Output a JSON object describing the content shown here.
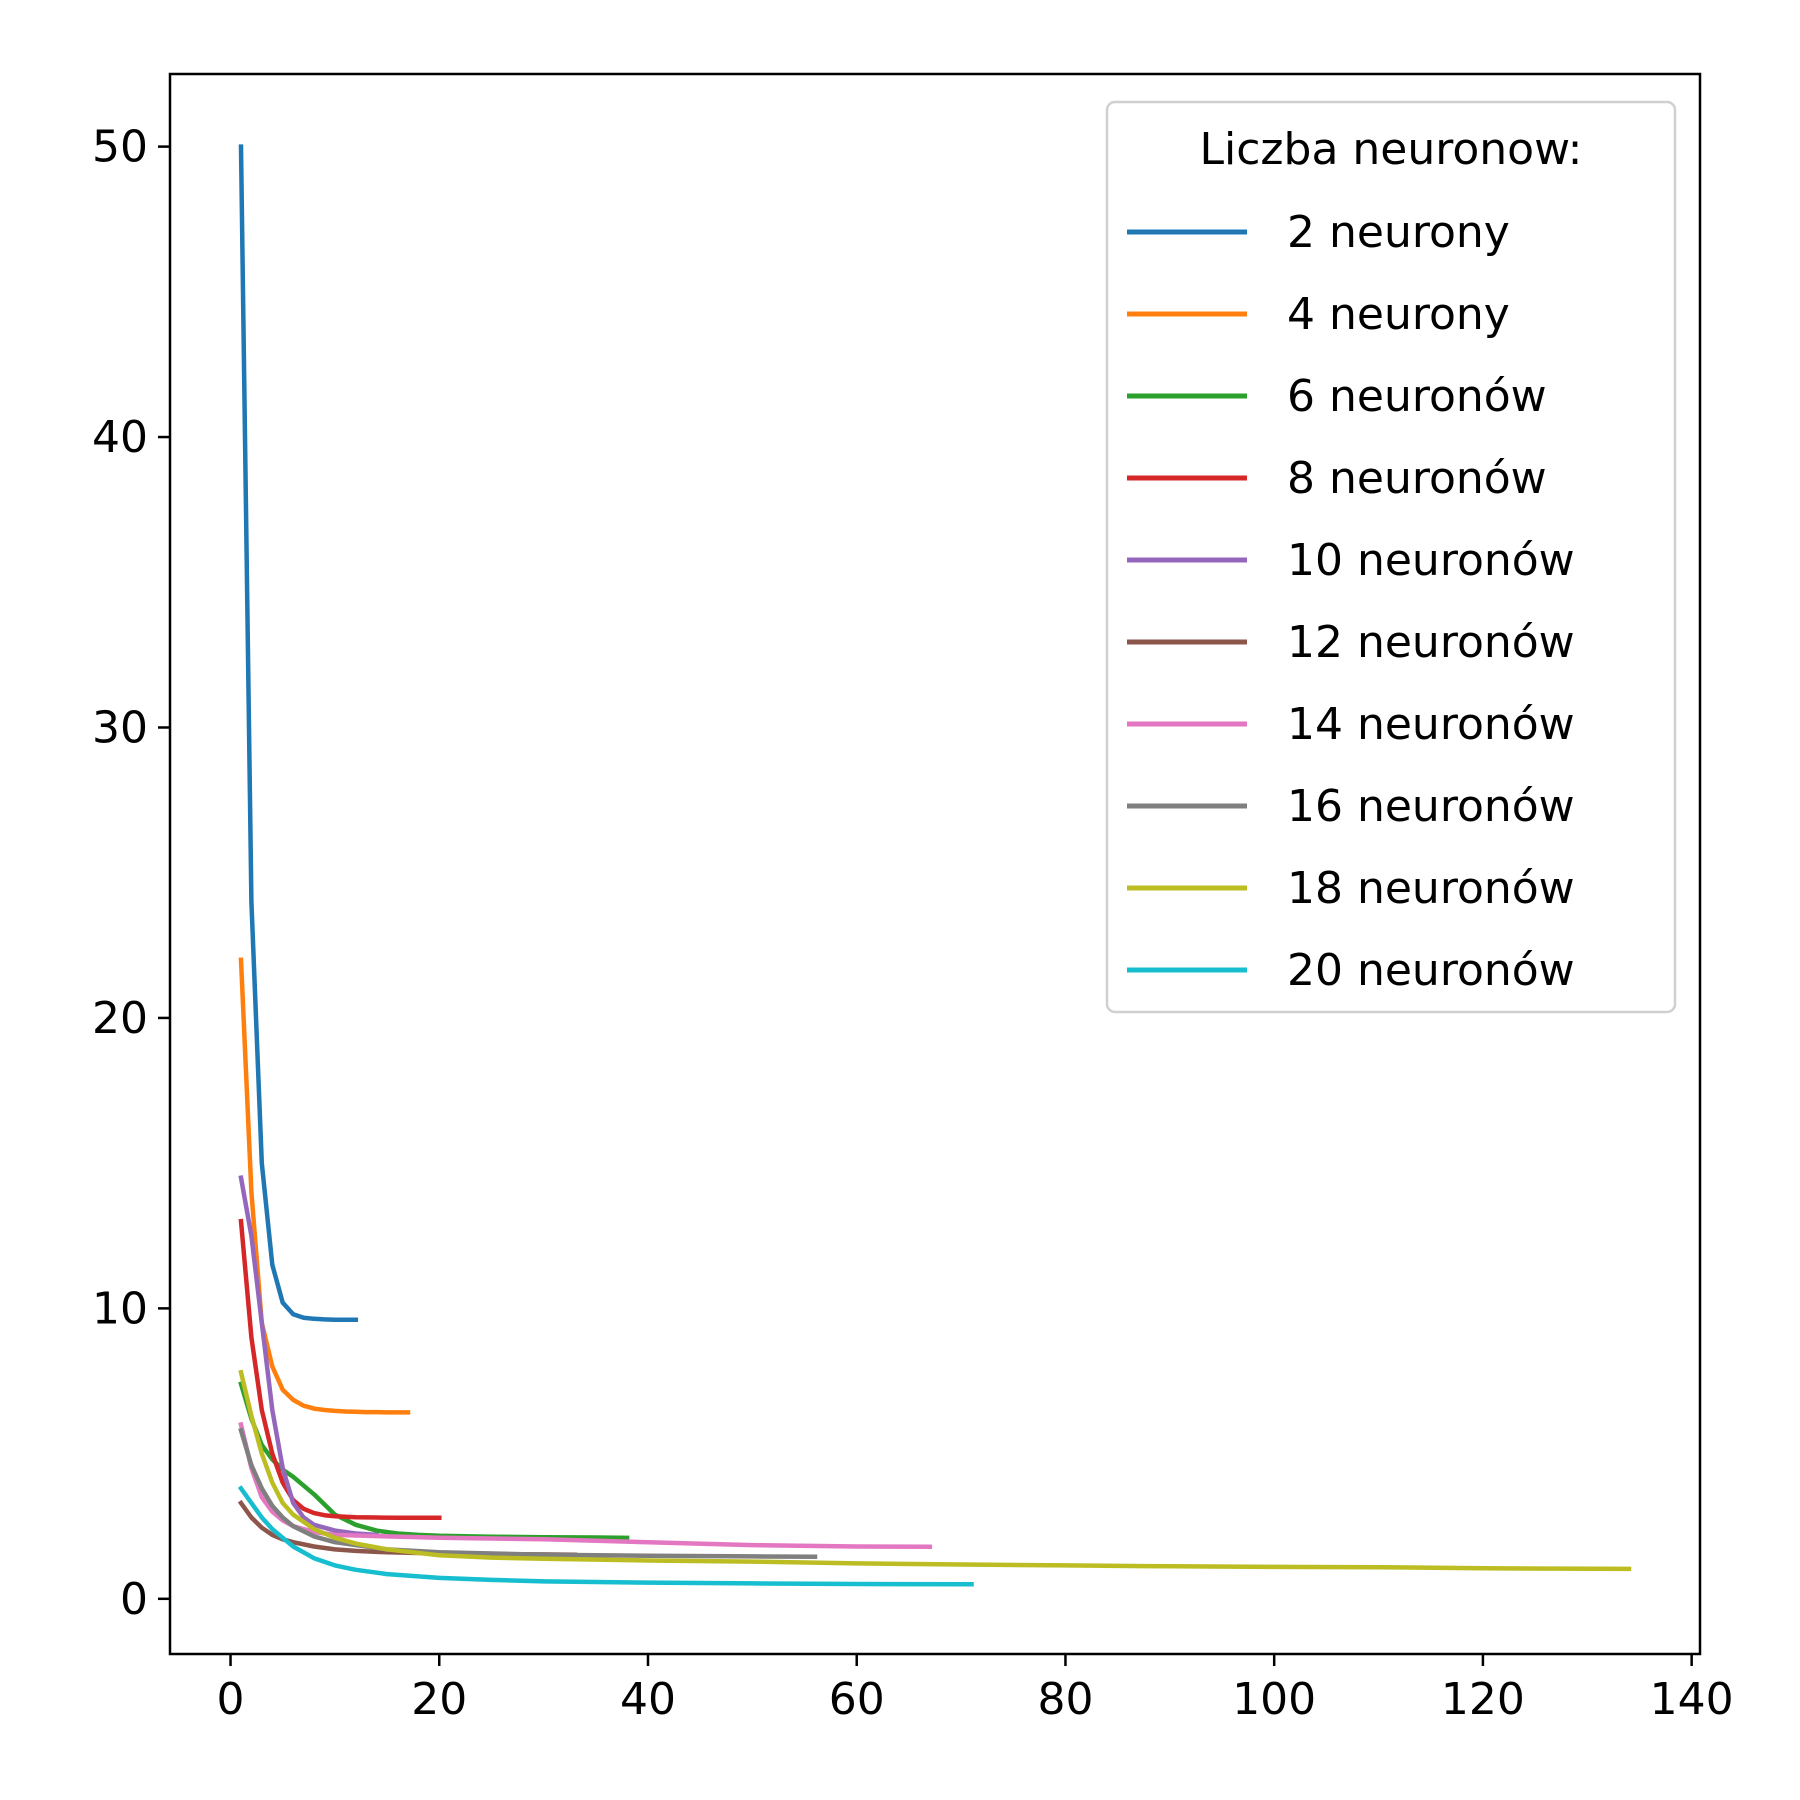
{
  "chart_data": {
    "type": "line",
    "title": "",
    "xlabel": "",
    "ylabel": "",
    "xlim": [
      -5.8,
      140.8
    ],
    "ylim": [
      -1.9,
      52.5
    ],
    "xticks": [
      0,
      20,
      40,
      60,
      80,
      100,
      120,
      140
    ],
    "yticks": [
      0,
      10,
      20,
      30,
      40,
      50
    ],
    "grid": false,
    "legend": {
      "title": "Liczba neuronow:",
      "placement": "top-right"
    },
    "series": [
      {
        "name": "2 neurony",
        "color": "#1f77b4",
        "x": [
          1,
          2,
          3,
          4,
          5,
          6,
          7,
          8,
          9,
          10,
          11,
          12
        ],
        "y": [
          50.0,
          24.0,
          15.0,
          11.5,
          10.2,
          9.8,
          9.68,
          9.64,
          9.62,
          9.61,
          9.61,
          9.61
        ]
      },
      {
        "name": "4 neurony",
        "color": "#ff7f0e",
        "x": [
          1,
          2,
          3,
          4,
          5,
          6,
          7,
          8,
          9,
          10,
          11,
          12,
          13,
          14,
          15,
          16,
          17
        ],
        "y": [
          22.0,
          14.0,
          9.5,
          8.0,
          7.2,
          6.85,
          6.65,
          6.55,
          6.5,
          6.47,
          6.45,
          6.44,
          6.43,
          6.43,
          6.42,
          6.42,
          6.42
        ]
      },
      {
        "name": "6 neuronów",
        "color": "#2ca02c",
        "x": [
          1,
          2,
          3,
          4,
          5,
          6,
          8,
          10,
          12,
          14,
          16,
          18,
          20,
          25,
          30,
          35,
          38
        ],
        "y": [
          7.4,
          6.2,
          5.3,
          4.8,
          4.45,
          4.2,
          3.6,
          2.9,
          2.55,
          2.35,
          2.25,
          2.2,
          2.17,
          2.14,
          2.12,
          2.11,
          2.1
        ]
      },
      {
        "name": "8 neuronów",
        "color": "#d62728",
        "x": [
          1,
          2,
          3,
          4,
          5,
          6,
          7,
          8,
          9,
          10,
          12,
          14,
          16,
          18,
          20
        ],
        "y": [
          13.0,
          9.0,
          6.5,
          5.0,
          4.0,
          3.4,
          3.1,
          2.95,
          2.88,
          2.84,
          2.81,
          2.8,
          2.79,
          2.79,
          2.79
        ]
      },
      {
        "name": "10 neuronów",
        "color": "#9467bd",
        "x": [
          1,
          2,
          3,
          4,
          5,
          6,
          7,
          8,
          10,
          12,
          14
        ],
        "y": [
          14.5,
          12.5,
          9.5,
          6.5,
          4.5,
          3.3,
          2.8,
          2.55,
          2.35,
          2.25,
          2.2
        ]
      },
      {
        "name": "12 neuronów",
        "color": "#8c564b",
        "x": [
          1,
          2,
          3,
          4,
          5,
          6,
          8,
          10,
          12,
          15,
          20,
          25,
          30,
          33
        ],
        "y": [
          3.3,
          2.8,
          2.45,
          2.2,
          2.05,
          1.95,
          1.8,
          1.7,
          1.65,
          1.6,
          1.56,
          1.54,
          1.53,
          1.52
        ]
      },
      {
        "name": "14 neuronów",
        "color": "#e377c2",
        "x": [
          1,
          2,
          3,
          4,
          5,
          6,
          8,
          10,
          15,
          20,
          30,
          40,
          50,
          60,
          67
        ],
        "y": [
          6.0,
          4.5,
          3.5,
          3.0,
          2.7,
          2.5,
          2.3,
          2.2,
          2.15,
          2.1,
          2.05,
          1.95,
          1.85,
          1.8,
          1.79
        ]
      },
      {
        "name": "16 neuronów",
        "color": "#7f7f7f",
        "x": [
          1,
          2,
          3,
          4,
          5,
          6,
          8,
          10,
          15,
          20,
          30,
          40,
          50,
          56
        ],
        "y": [
          5.8,
          4.6,
          3.8,
          3.2,
          2.8,
          2.5,
          2.15,
          1.95,
          1.7,
          1.6,
          1.52,
          1.48,
          1.46,
          1.45
        ]
      },
      {
        "name": "18 neuronów",
        "color": "#bcbd22",
        "x": [
          1,
          2,
          3,
          4,
          5,
          6,
          8,
          10,
          12,
          15,
          20,
          25,
          30,
          40,
          50,
          60,
          70,
          80,
          90,
          100,
          110,
          120,
          134
        ],
        "y": [
          7.8,
          6.3,
          5.0,
          4.0,
          3.3,
          2.9,
          2.4,
          2.1,
          1.9,
          1.7,
          1.5,
          1.42,
          1.38,
          1.32,
          1.28,
          1.22,
          1.18,
          1.15,
          1.12,
          1.1,
          1.09,
          1.05,
          1.03
        ]
      },
      {
        "name": "20 neuronów",
        "color": "#17becf",
        "x": [
          1,
          2,
          3,
          4,
          5,
          6,
          8,
          10,
          12,
          15,
          20,
          25,
          30,
          40,
          50,
          60,
          71
        ],
        "y": [
          3.8,
          3.3,
          2.8,
          2.4,
          2.1,
          1.8,
          1.4,
          1.15,
          1.0,
          0.85,
          0.72,
          0.65,
          0.6,
          0.56,
          0.53,
          0.51,
          0.5
        ]
      }
    ]
  }
}
